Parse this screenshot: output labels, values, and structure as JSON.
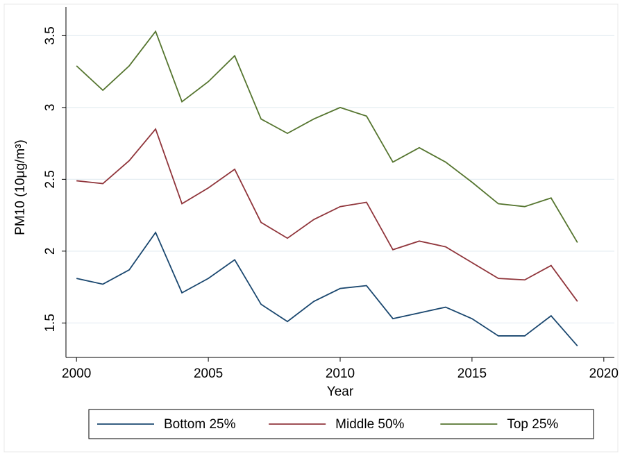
{
  "chart_data": {
    "type": "line",
    "x_label": "Year",
    "y_label": "PM10 (10μg/m³)",
    "x": [
      2000,
      2001,
      2002,
      2003,
      2004,
      2005,
      2006,
      2007,
      2008,
      2009,
      2010,
      2011,
      2012,
      2013,
      2014,
      2015,
      2016,
      2017,
      2018,
      2019
    ],
    "series": [
      {
        "name": "Bottom 25%",
        "color": "#1a476f",
        "values": [
          1.81,
          1.77,
          1.87,
          2.13,
          1.71,
          1.81,
          1.94,
          1.63,
          1.51,
          1.65,
          1.74,
          1.76,
          1.53,
          1.57,
          1.61,
          1.53,
          1.41,
          1.41,
          1.55,
          1.34
        ]
      },
      {
        "name": "Middle 50%",
        "color": "#90353b",
        "values": [
          2.49,
          2.47,
          2.63,
          2.85,
          2.33,
          2.44,
          2.57,
          2.2,
          2.09,
          2.22,
          2.31,
          2.34,
          2.01,
          2.07,
          2.03,
          1.92,
          1.81,
          1.8,
          1.9,
          1.65
        ]
      },
      {
        "name": "Top 25%",
        "color": "#55752f",
        "values": [
          3.29,
          3.12,
          3.29,
          3.53,
          3.04,
          3.18,
          3.36,
          2.92,
          2.82,
          2.92,
          3.0,
          2.94,
          2.62,
          2.72,
          2.62,
          2.48,
          2.33,
          2.31,
          2.37,
          2.06
        ]
      }
    ],
    "xlim": [
      1999.6,
      2020.4
    ],
    "xticks": [
      2000,
      2005,
      2010,
      2015,
      2020
    ],
    "ylim": [
      1.26,
      3.7
    ],
    "yticks": [
      1.5,
      2,
      2.5,
      3,
      3.5
    ],
    "grid": true,
    "legend": "bottom"
  }
}
